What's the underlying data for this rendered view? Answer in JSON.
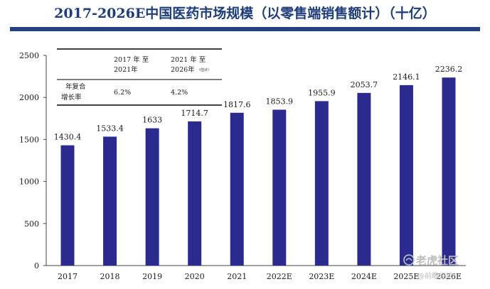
{
  "title": "2017-2026E中国医药市场规模（以零售端销售额计）（十亿）",
  "chart_data": {
    "type": "bar",
    "categories": [
      "2017",
      "2018",
      "2019",
      "2020",
      "2021",
      "2022E",
      "2023E",
      "2024E",
      "2025E",
      "2026E"
    ],
    "values": [
      1430.4,
      1533.4,
      1633,
      1714.7,
      1817.6,
      1853.9,
      1955.9,
      2053.7,
      2146.1,
      2236.2
    ],
    "value_labels": [
      "1430.4",
      "1533.4",
      "1633",
      "1714.7",
      "1817.6",
      "1853.9",
      "1955.9",
      "2053.7",
      "2146.1",
      "2236.2"
    ],
    "ylim": [
      0,
      2500
    ],
    "yticks": [
      "0",
      "500",
      "1000",
      "1500",
      "2000",
      "2500"
    ],
    "bar_color": "#2b2b8f",
    "grid": false
  },
  "growth_table": {
    "period1_line1": "2017 年 至",
    "period1_line2": "2021年",
    "period2_line1": "2021 年 至",
    "period2_line2": "2026年",
    "period2_note": "（估计）",
    "row_label_line1": "年复合",
    "row_label_line2": "增长率",
    "value1": "6.2%",
    "value2": "4.2%"
  },
  "watermark": {
    "main": "老虎社区",
    "sub": "@前瞻经纶"
  }
}
